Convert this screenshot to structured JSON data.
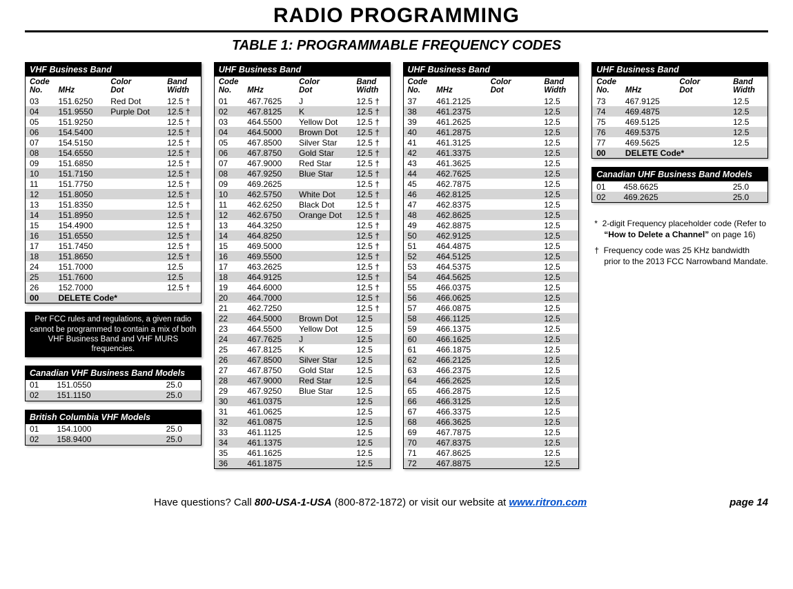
{
  "title": "RADIO PROGRAMMING",
  "subtitle": "TABLE 1: PROGRAMMABLE FREQUENCY CODES",
  "col_headers": {
    "code": "Code",
    "no": "No.",
    "mhz": "MHz",
    "dot": "Color",
    "dot2": "Dot",
    "bw": "Band",
    "bw2": "Width"
  },
  "vhf": {
    "title": "VHF Business Band",
    "rows": [
      [
        "03",
        "151.6250",
        "Red Dot",
        "12.5 †"
      ],
      [
        "04",
        "151.9550",
        "Purple Dot",
        "12.5 †"
      ],
      [
        "05",
        "151.9250",
        "",
        "12.5 †"
      ],
      [
        "06",
        "154.5400",
        "",
        "12.5 †"
      ],
      [
        "07",
        "154.5150",
        "",
        "12.5 †"
      ],
      [
        "08",
        "154.6550",
        "",
        "12.5 †"
      ],
      [
        "09",
        "151.6850",
        "",
        "12.5 †"
      ],
      [
        "10",
        "151.7150",
        "",
        "12.5 †"
      ],
      [
        "11",
        "151.7750",
        "",
        "12.5 †"
      ],
      [
        "12",
        "151.8050",
        "",
        "12.5 †"
      ],
      [
        "13",
        "151.8350",
        "",
        "12.5 †"
      ],
      [
        "14",
        "151.8950",
        "",
        "12.5 †"
      ],
      [
        "15",
        "154.4900",
        "",
        "12.5 †"
      ],
      [
        "16",
        "151.6550",
        "",
        "12.5 †"
      ],
      [
        "17",
        "151.7450",
        "",
        "12.5 †"
      ],
      [
        "18",
        "151.8650",
        "",
        "12.5 †"
      ],
      [
        "24",
        "151.7000",
        "",
        "12.5"
      ],
      [
        "25",
        "151.7600",
        "",
        "12.5"
      ],
      [
        "26",
        "152.7000",
        "",
        "12.5 †"
      ]
    ],
    "del": "DELETE Code*"
  },
  "fcc_note": "Per FCC rules and regulations, a given radio cannot be programmed to contain a mix of both VHF Business Band and VHF MURS frequencies.",
  "can_vhf": {
    "title": "Canadian VHF Business Band Models",
    "rows": [
      [
        "01",
        "151.0550",
        "",
        "25.0"
      ],
      [
        "02",
        "151.1150",
        "",
        "25.0"
      ]
    ]
  },
  "bc_vhf": {
    "title": "British Columbia VHF Models",
    "rows": [
      [
        "01",
        "154.1000",
        "",
        "25.0"
      ],
      [
        "02",
        "158.9400",
        "",
        "25.0"
      ]
    ]
  },
  "uhf1": {
    "title": "UHF Business Band",
    "rows": [
      [
        "01",
        "467.7625",
        "J",
        "12.5 †"
      ],
      [
        "02",
        "467.8125",
        "K",
        "12.5 †"
      ],
      [
        "03",
        "464.5500",
        "Yellow Dot",
        "12.5 †"
      ],
      [
        "04",
        "464.5000",
        "Brown Dot",
        "12.5 †"
      ],
      [
        "05",
        "467.8500",
        "Silver Star",
        "12.5 †"
      ],
      [
        "06",
        "467.8750",
        "Gold Star",
        "12.5 †"
      ],
      [
        "07",
        "467.9000",
        "Red Star",
        "12.5 †"
      ],
      [
        "08",
        "467.9250",
        "Blue Star",
        "12.5 †"
      ],
      [
        "09",
        "469.2625",
        "",
        "12.5 †"
      ],
      [
        "10",
        "462.5750",
        "White Dot",
        "12.5 †"
      ],
      [
        "11",
        "462.6250",
        "Black Dot",
        "12.5 †"
      ],
      [
        "12",
        "462.6750",
        "Orange Dot",
        "12.5 †"
      ],
      [
        "13",
        "464.3250",
        "",
        "12.5 †"
      ],
      [
        "14",
        "464.8250",
        "",
        "12.5 †"
      ],
      [
        "15",
        "469.5000",
        "",
        "12.5 †"
      ],
      [
        "16",
        "469.5500",
        "",
        "12.5 †"
      ],
      [
        "17",
        "463.2625",
        "",
        "12.5 †"
      ],
      [
        "18",
        "464.9125",
        "",
        "12.5 †"
      ],
      [
        "19",
        "464.6000",
        "",
        "12.5 †"
      ],
      [
        "20",
        "464.7000",
        "",
        "12.5 †"
      ],
      [
        "21",
        "462.7250",
        "",
        "12.5 †"
      ],
      [
        "22",
        "464.5000",
        "Brown Dot",
        "12.5"
      ],
      [
        "23",
        "464.5500",
        "Yellow Dot",
        "12.5"
      ],
      [
        "24",
        "467.7625",
        "J",
        "12.5"
      ],
      [
        "25",
        "467.8125",
        "K",
        "12.5"
      ],
      [
        "26",
        "467.8500",
        "Silver Star",
        "12.5"
      ],
      [
        "27",
        "467.8750",
        "Gold Star",
        "12.5"
      ],
      [
        "28",
        "467.9000",
        "Red Star",
        "12.5"
      ],
      [
        "29",
        "467.9250",
        "Blue Star",
        "12.5"
      ],
      [
        "30",
        "461.0375",
        "",
        "12.5"
      ],
      [
        "31",
        "461.0625",
        "",
        "12.5"
      ],
      [
        "32",
        "461.0875",
        "",
        "12.5"
      ],
      [
        "33",
        "461.1125",
        "",
        "12.5"
      ],
      [
        "34",
        "461.1375",
        "",
        "12.5"
      ],
      [
        "35",
        "461.1625",
        "",
        "12.5"
      ],
      [
        "36",
        "461.1875",
        "",
        "12.5"
      ]
    ]
  },
  "uhf2": {
    "title": "UHF Business Band",
    "rows": [
      [
        "37",
        "461.2125",
        "",
        "12.5"
      ],
      [
        "38",
        "461.2375",
        "",
        "12.5"
      ],
      [
        "39",
        "461.2625",
        "",
        "12.5"
      ],
      [
        "40",
        "461.2875",
        "",
        "12.5"
      ],
      [
        "41",
        "461.3125",
        "",
        "12.5"
      ],
      [
        "42",
        "461.3375",
        "",
        "12.5"
      ],
      [
        "43",
        "461.3625",
        "",
        "12.5"
      ],
      [
        "44",
        "462.7625",
        "",
        "12.5"
      ],
      [
        "45",
        "462.7875",
        "",
        "12.5"
      ],
      [
        "46",
        "462.8125",
        "",
        "12.5"
      ],
      [
        "47",
        "462.8375",
        "",
        "12.5"
      ],
      [
        "48",
        "462.8625",
        "",
        "12.5"
      ],
      [
        "49",
        "462.8875",
        "",
        "12.5"
      ],
      [
        "50",
        "462.9125",
        "",
        "12.5"
      ],
      [
        "51",
        "464.4875",
        "",
        "12.5"
      ],
      [
        "52",
        "464.5125",
        "",
        "12.5"
      ],
      [
        "53",
        "464.5375",
        "",
        "12.5"
      ],
      [
        "54",
        "464.5625",
        "",
        "12.5"
      ],
      [
        "55",
        "466.0375",
        "",
        "12.5"
      ],
      [
        "56",
        "466.0625",
        "",
        "12.5"
      ],
      [
        "57",
        "466.0875",
        "",
        "12.5"
      ],
      [
        "58",
        "466.1125",
        "",
        "12.5"
      ],
      [
        "59",
        "466.1375",
        "",
        "12.5"
      ],
      [
        "60",
        "466.1625",
        "",
        "12.5"
      ],
      [
        "61",
        "466.1875",
        "",
        "12.5"
      ],
      [
        "62",
        "466.2125",
        "",
        "12.5"
      ],
      [
        "63",
        "466.2375",
        "",
        "12.5"
      ],
      [
        "64",
        "466.2625",
        "",
        "12.5"
      ],
      [
        "65",
        "466.2875",
        "",
        "12.5"
      ],
      [
        "66",
        "466.3125",
        "",
        "12.5"
      ],
      [
        "67",
        "466.3375",
        "",
        "12.5"
      ],
      [
        "68",
        "466.3625",
        "",
        "12.5"
      ],
      [
        "69",
        "467.7875",
        "",
        "12.5"
      ],
      [
        "70",
        "467.8375",
        "",
        "12.5"
      ],
      [
        "71",
        "467.8625",
        "",
        "12.5"
      ],
      [
        "72",
        "467.8875",
        "",
        "12.5"
      ]
    ]
  },
  "uhf3": {
    "title": "UHF Business Band",
    "rows": [
      [
        "73",
        "467.9125",
        "",
        "12.5"
      ],
      [
        "74",
        "469.4875",
        "",
        "12.5"
      ],
      [
        "75",
        "469.5125",
        "",
        "12.5"
      ],
      [
        "76",
        "469.5375",
        "",
        "12.5"
      ],
      [
        "77",
        "469.5625",
        "",
        "12.5"
      ]
    ],
    "del": "DELETE Code*"
  },
  "can_uhf": {
    "title": "Canadian UHF Business Band Models",
    "rows": [
      [
        "01",
        "458.6625",
        "",
        "25.0"
      ],
      [
        "02",
        "469.2625",
        "",
        "25.0"
      ]
    ]
  },
  "footnotes": {
    "star": "2-digit Frequency placeholder code (Refer to ",
    "star_bold": "“How to Delete a Channel”",
    "star_tail": " on page 16)",
    "dagger": "Frequency code was 25 KHz bandwidth prior to the 2013 FCC Narrowband Mandate."
  },
  "footer": {
    "q": "Have questions?  Call ",
    "phone": "800-USA-1-USA",
    "phone2": " (800-872-1872) or visit our website at ",
    "url": "www.ritron.com",
    "page": "page 14"
  }
}
